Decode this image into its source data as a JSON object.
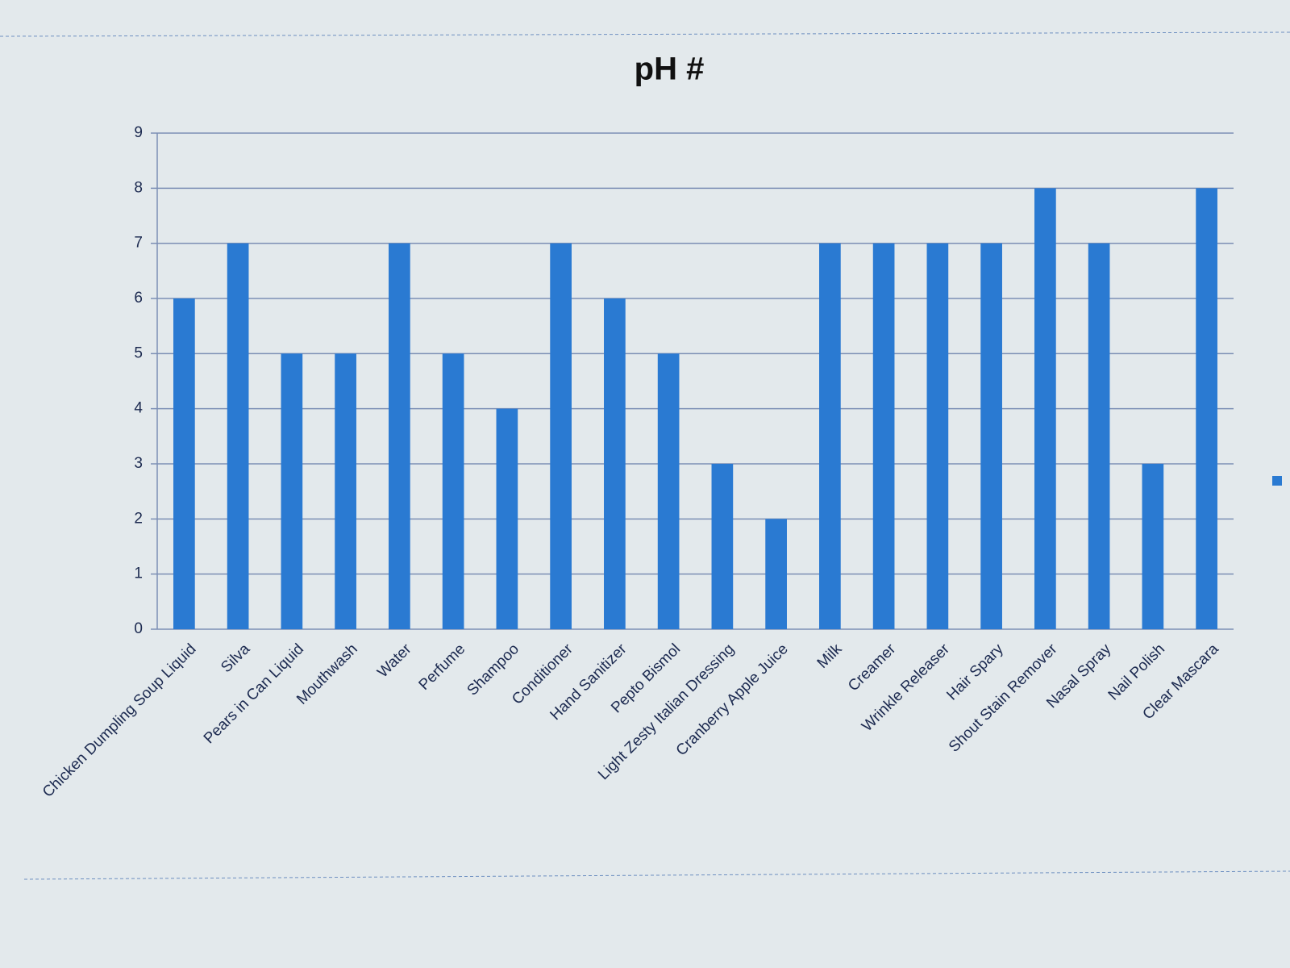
{
  "chart_data": {
    "type": "bar",
    "title": "pH #",
    "categories": [
      "Chicken Dumpling Soup Liquid",
      "Silva",
      "Pears in Can Liquid",
      "Mouthwash",
      "Water",
      "Perfume",
      "Shampoo",
      "Conditioner",
      "Hand Sanitizer",
      "Pepto Bismol",
      "Light Zesty Italian Dressing",
      "Cranberry Apple Juice",
      "Milk",
      "Creamer",
      "Wrinkle Releaser",
      "Hair Spary",
      "Shout Stain Remover",
      "Nasal Spray",
      "Nail Polish",
      "Clear Mascara"
    ],
    "values": [
      6,
      7,
      5,
      5,
      7,
      5,
      4,
      7,
      6,
      5,
      3,
      2,
      7,
      7,
      7,
      7,
      8,
      7,
      3,
      8
    ],
    "color": "#2a7ad2",
    "ylim": [
      0,
      9
    ],
    "yticks": [
      0,
      1,
      2,
      3,
      4,
      5,
      6,
      7,
      8,
      9
    ],
    "grid": true
  }
}
